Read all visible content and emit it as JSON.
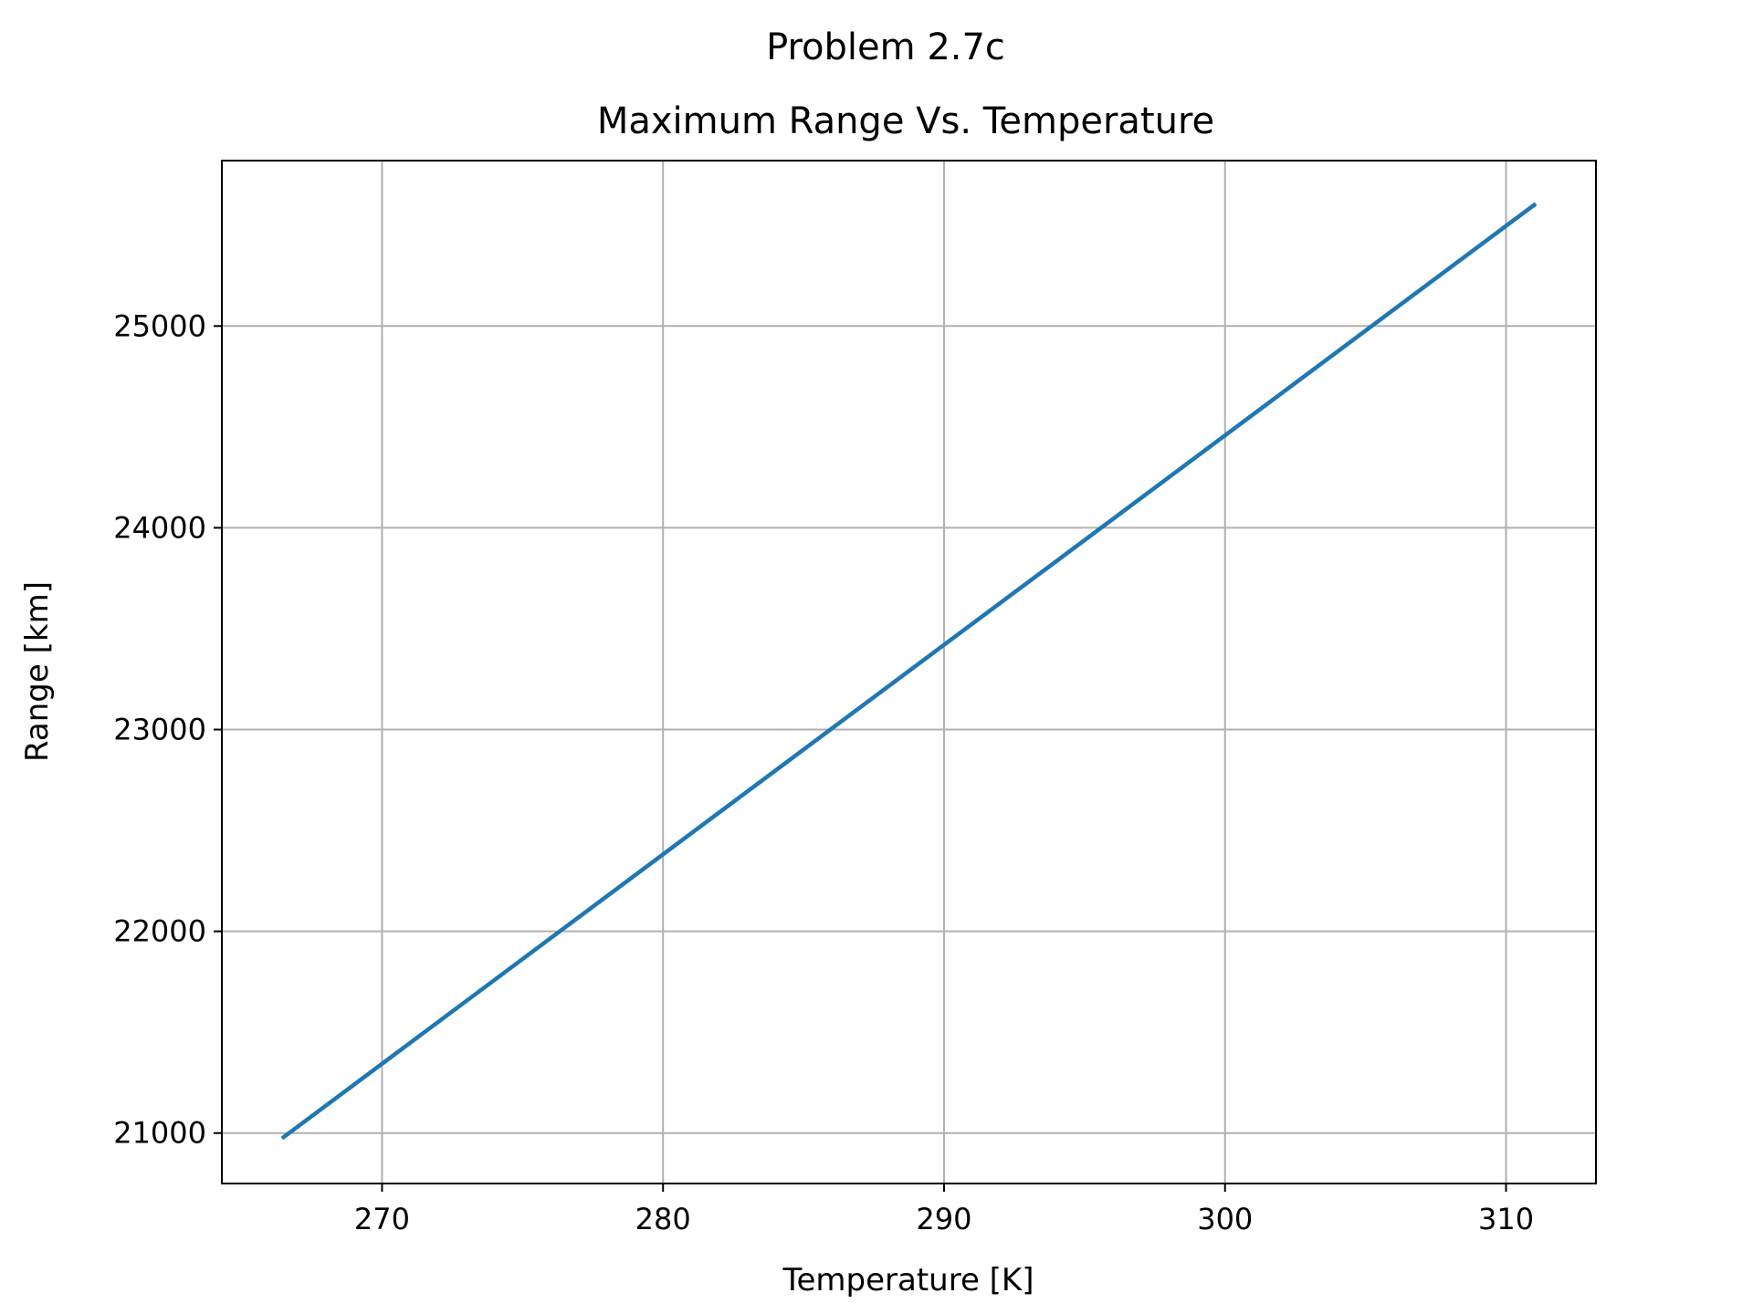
{
  "chart_data": {
    "type": "line",
    "suptitle": "Problem 2.7c",
    "title": "Maximum Range Vs. Temperature",
    "xlabel": "Temperature [K]",
    "ylabel": "Range [km]",
    "xlim": [
      264.3,
      313.2
    ],
    "ylim": [
      20750,
      25820
    ],
    "xticks": [
      270,
      280,
      290,
      300,
      310
    ],
    "yticks": [
      21000,
      22000,
      23000,
      24000,
      25000
    ],
    "xtick_labels": [
      "270",
      "280",
      "290",
      "300",
      "310"
    ],
    "ytick_labels": [
      "21000",
      "22000",
      "23000",
      "24000",
      "25000"
    ],
    "grid": true,
    "series": [
      {
        "color": "#1f77b4",
        "x": [
          266.5,
          311.0
        ],
        "y": [
          20980,
          25600
        ]
      }
    ]
  }
}
